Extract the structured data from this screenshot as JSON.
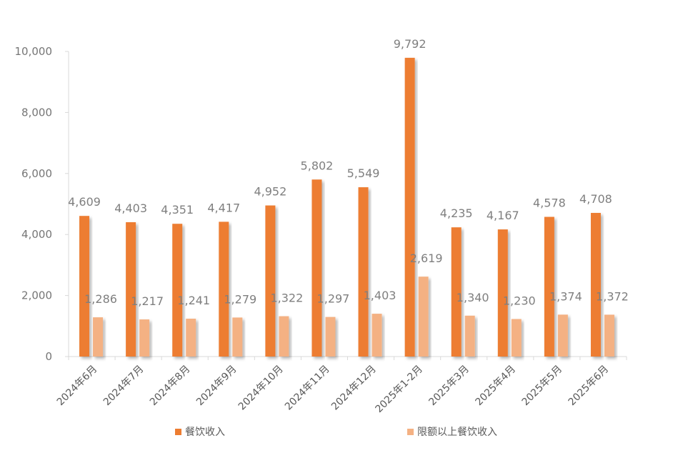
{
  "chart_data": {
    "type": "bar",
    "title": "",
    "xlabel": "",
    "ylabel": "",
    "ylim": [
      0,
      10000
    ],
    "yticks": [
      0,
      2000,
      4000,
      6000,
      8000,
      10000
    ],
    "ytick_labels": [
      "0",
      "2,000",
      "4,000",
      "6,000",
      "8,000",
      "10,000"
    ],
    "categories": [
      "2024年6月",
      "2024年7月",
      "2024年8月",
      "2024年9月",
      "2024年10月",
      "2024年11月",
      "2024年12月",
      "2025年1-2月",
      "2025年3月",
      "2025年4月",
      "2025年5月",
      "2025年6月"
    ],
    "series": [
      {
        "name": "餐饮收入",
        "color": "#ED7D31",
        "values": [
          4609,
          4403,
          4351,
          4417,
          4952,
          5802,
          5549,
          9792,
          4235,
          4167,
          4578,
          4708
        ],
        "labels": [
          "4,609",
          "4,403",
          "4,351",
          "4,417",
          "4,952",
          "5,802",
          "5,549",
          "9,792",
          "4,235",
          "4,167",
          "4,578",
          "4,708"
        ]
      },
      {
        "name": "限额以上餐饮收入",
        "color": "#F4B183",
        "values": [
          1286,
          1217,
          1241,
          1279,
          1322,
          1297,
          1403,
          2619,
          1340,
          1230,
          1374,
          1372
        ],
        "labels": [
          "1,286",
          "1,217",
          "1,241",
          "1,279",
          "1,322",
          "1,297",
          "1,403",
          "2,619",
          "1,340",
          "1,230",
          "1,374",
          "1,372"
        ]
      }
    ],
    "legend_position": "bottom",
    "grid": false
  }
}
